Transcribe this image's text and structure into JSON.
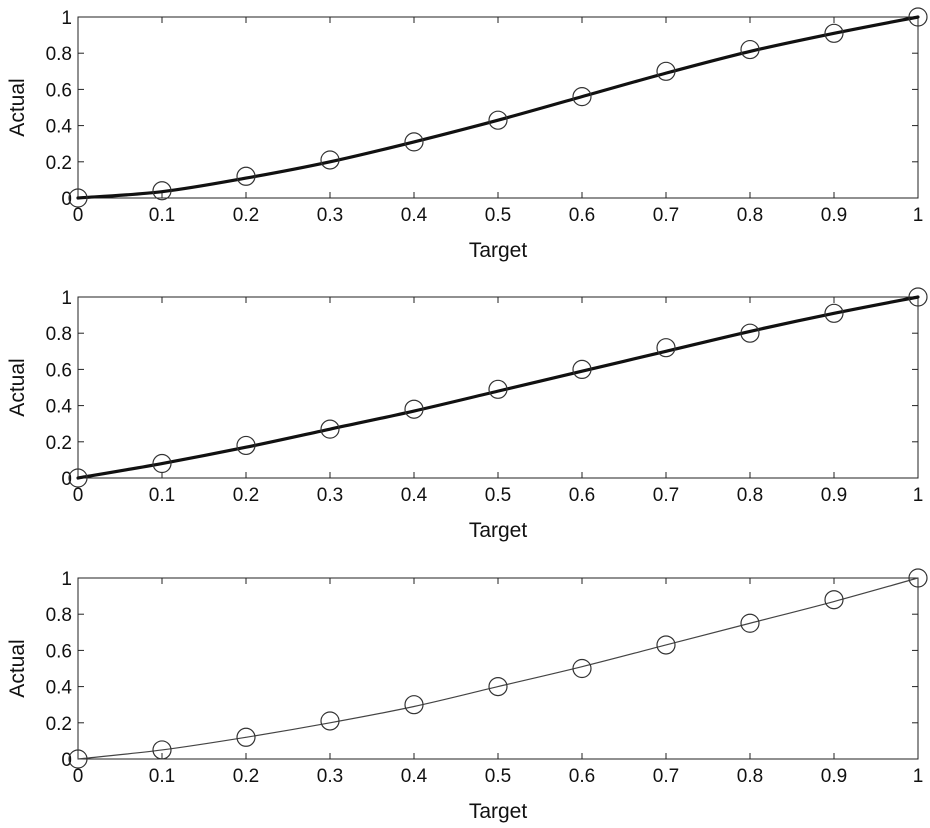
{
  "chart_data": [
    {
      "type": "line",
      "xlabel": "Target",
      "ylabel": "Actual",
      "xlim": [
        0,
        1
      ],
      "ylim": [
        0,
        1
      ],
      "xticks": [
        "0",
        "0.1",
        "0.2",
        "0.3",
        "0.4",
        "0.5",
        "0.6",
        "0.7",
        "0.8",
        "0.9",
        "1"
      ],
      "yticks": [
        "0",
        "0.2",
        "0.4",
        "0.6",
        "0.8",
        "1"
      ],
      "grid": false,
      "line_style": "thick",
      "x": [
        0,
        0.1,
        0.2,
        0.3,
        0.4,
        0.5,
        0.6,
        0.7,
        0.8,
        0.9,
        1
      ],
      "markers": [
        0,
        0.04,
        0.12,
        0.21,
        0.31,
        0.43,
        0.56,
        0.7,
        0.82,
        0.91,
        1
      ],
      "curve": [
        0,
        0.035,
        0.11,
        0.2,
        0.31,
        0.43,
        0.56,
        0.69,
        0.81,
        0.91,
        1
      ],
      "line_color": "#111111"
    },
    {
      "type": "line",
      "xlabel": "Target",
      "ylabel": "Actual",
      "xlim": [
        0,
        1
      ],
      "ylim": [
        0,
        1
      ],
      "xticks": [
        "0",
        "0.1",
        "0.2",
        "0.3",
        "0.4",
        "0.5",
        "0.6",
        "0.7",
        "0.8",
        "0.9",
        "1"
      ],
      "yticks": [
        "0",
        "0.2",
        "0.4",
        "0.6",
        "0.8",
        "1"
      ],
      "grid": false,
      "line_style": "thick",
      "x": [
        0,
        0.1,
        0.2,
        0.3,
        0.4,
        0.5,
        0.6,
        0.7,
        0.8,
        0.9,
        1
      ],
      "markers": [
        0,
        0.08,
        0.18,
        0.27,
        0.38,
        0.49,
        0.6,
        0.72,
        0.8,
        0.91,
        1
      ],
      "curve": [
        0,
        0.08,
        0.17,
        0.27,
        0.37,
        0.48,
        0.59,
        0.7,
        0.81,
        0.91,
        1
      ],
      "line_color": "#111111"
    },
    {
      "type": "line",
      "xlabel": "Target",
      "ylabel": "Actual",
      "xlim": [
        0,
        1
      ],
      "ylim": [
        0,
        1
      ],
      "xticks": [
        "0",
        "0.1",
        "0.2",
        "0.3",
        "0.4",
        "0.5",
        "0.6",
        "0.7",
        "0.8",
        "0.9",
        "1"
      ],
      "yticks": [
        "0",
        "0.2",
        "0.4",
        "0.6",
        "0.8",
        "1"
      ],
      "grid": false,
      "line_style": "thin",
      "x": [
        0,
        0.1,
        0.2,
        0.3,
        0.4,
        0.5,
        0.6,
        0.7,
        0.8,
        0.9,
        1
      ],
      "markers": [
        0,
        0.05,
        0.12,
        0.21,
        0.3,
        0.4,
        0.5,
        0.63,
        0.75,
        0.88,
        1
      ],
      "curve": [
        0,
        0.05,
        0.12,
        0.2,
        0.29,
        0.4,
        0.51,
        0.63,
        0.75,
        0.87,
        1
      ],
      "line_color": "#444444"
    }
  ]
}
